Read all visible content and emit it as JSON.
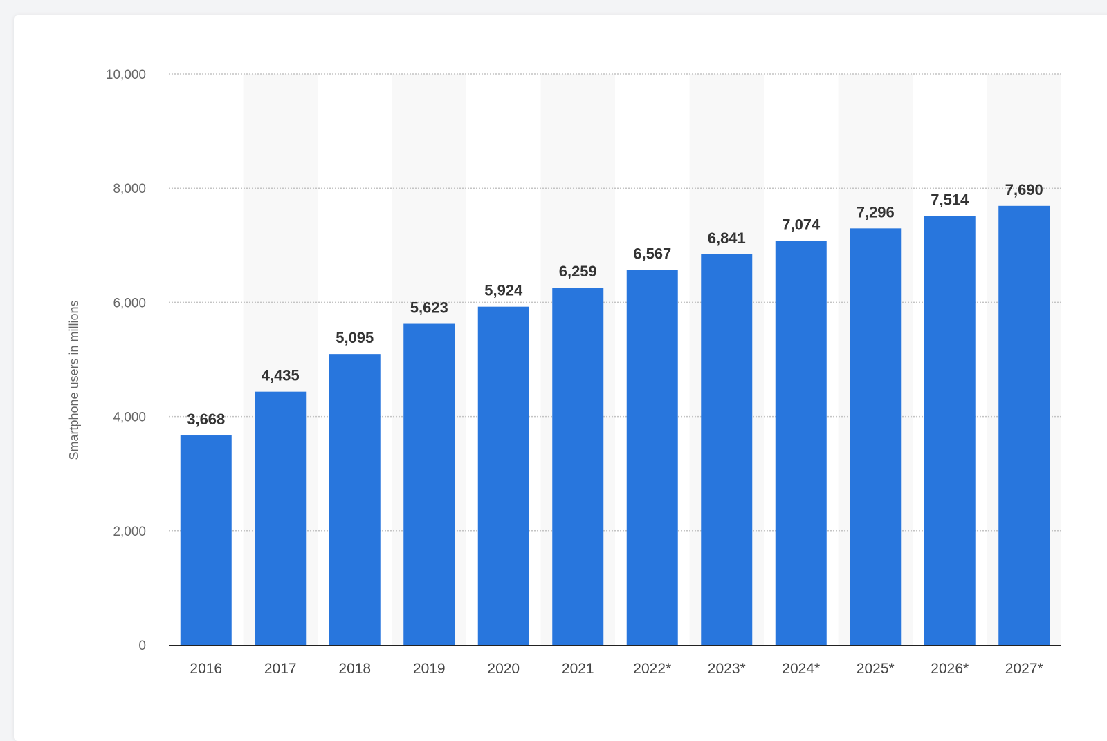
{
  "chart_data": {
    "type": "bar",
    "categories": [
      "2016",
      "2017",
      "2018",
      "2019",
      "2020",
      "2021",
      "2022*",
      "2023*",
      "2024*",
      "2025*",
      "2026*",
      "2027*"
    ],
    "values": [
      3668,
      4435,
      5095,
      5623,
      5924,
      6259,
      6567,
      6841,
      7074,
      7296,
      7514,
      7690
    ],
    "value_labels": [
      "3,668",
      "4,435",
      "5,095",
      "5,623",
      "5,924",
      "6,259",
      "6,567",
      "6,841",
      "7,074",
      "7,296",
      "7,514",
      "7,690"
    ],
    "ylabel": "Smartphone users in millions",
    "ylim": [
      0,
      10000
    ],
    "yticks": [
      0,
      2000,
      4000,
      6000,
      8000,
      10000
    ],
    "ytick_labels": [
      "0",
      "2,000",
      "4,000",
      "6,000",
      "8,000",
      "10,000"
    ],
    "grid": true,
    "legend": "none"
  },
  "colors": {
    "bar": "#2876dd",
    "band": "#f8f8f8",
    "grid": "#c4c4c4",
    "baseline": "#222222"
  }
}
